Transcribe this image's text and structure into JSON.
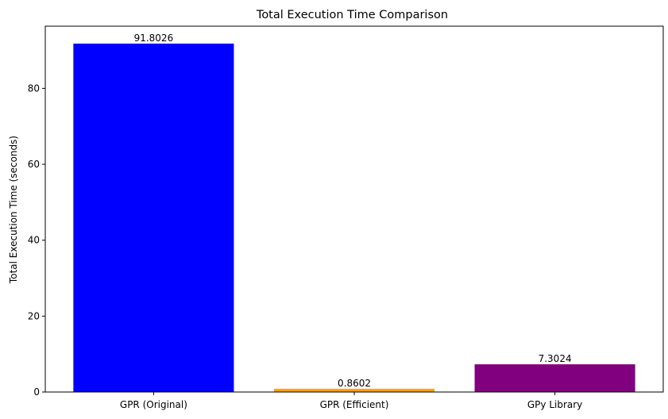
{
  "chart_data": {
    "type": "bar",
    "title": "Total Execution Time Comparison",
    "xlabel": "",
    "ylabel": "Total Execution Time (seconds)",
    "categories": [
      "GPR (Original)",
      "GPR (Efficient)",
      "GPy Library"
    ],
    "values": [
      91.8026,
      0.8602,
      7.3024
    ],
    "value_labels": [
      "91.8026",
      "0.8602",
      "7.3024"
    ],
    "colors": [
      "#0000ff",
      "#ffa500",
      "#800080"
    ],
    "ylim": [
      0,
      96.39
    ],
    "yticks": [
      0,
      20,
      40,
      60,
      80
    ],
    "ytick_labels": [
      "0",
      "20",
      "40",
      "60",
      "80"
    ],
    "grid": false,
    "legend": "none"
  }
}
